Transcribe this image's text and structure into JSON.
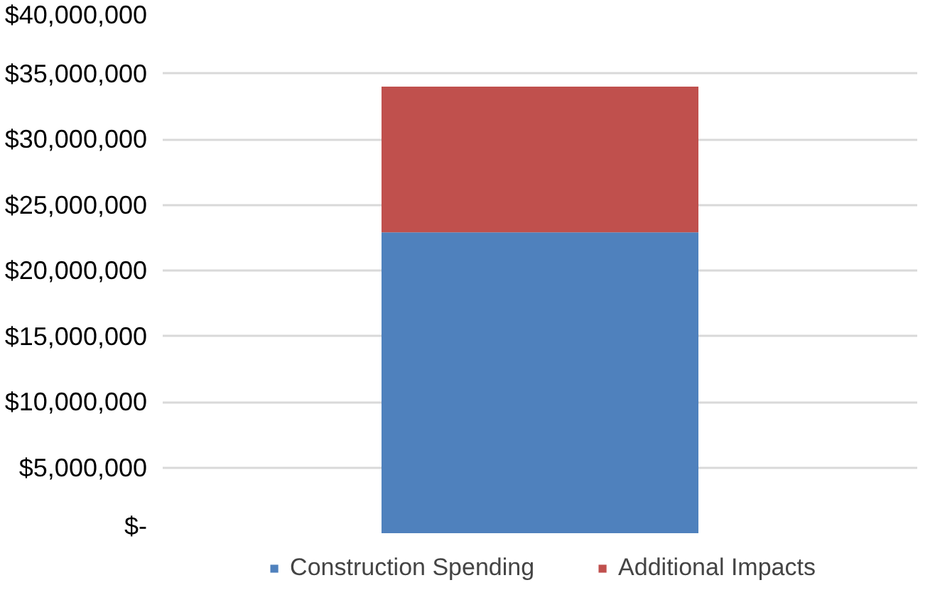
{
  "chart_data": {
    "type": "bar",
    "stacked": true,
    "categories": [
      null
    ],
    "series": [
      {
        "name": "Construction Spending",
        "color": "#4f81bd",
        "values": [
          22900000
        ]
      },
      {
        "name": "Additional Impacts",
        "color": "#c0504d",
        "values": [
          11100000
        ]
      }
    ],
    "ylim": [
      0,
      40000000
    ],
    "yticks": [
      {
        "value": 0,
        "label": "$-"
      },
      {
        "value": 5000000,
        "label": "$5,000,000"
      },
      {
        "value": 10000000,
        "label": "$10,000,000"
      },
      {
        "value": 15000000,
        "label": "$15,000,000"
      },
      {
        "value": 20000000,
        "label": "$20,000,000"
      },
      {
        "value": 25000000,
        "label": "$25,000,000"
      },
      {
        "value": 30000000,
        "label": "$30,000,000"
      },
      {
        "value": 35000000,
        "label": "$35,000,000"
      },
      {
        "value": 40000000,
        "label": "$40,000,000"
      }
    ],
    "grid": "y",
    "legend": "bottom"
  }
}
